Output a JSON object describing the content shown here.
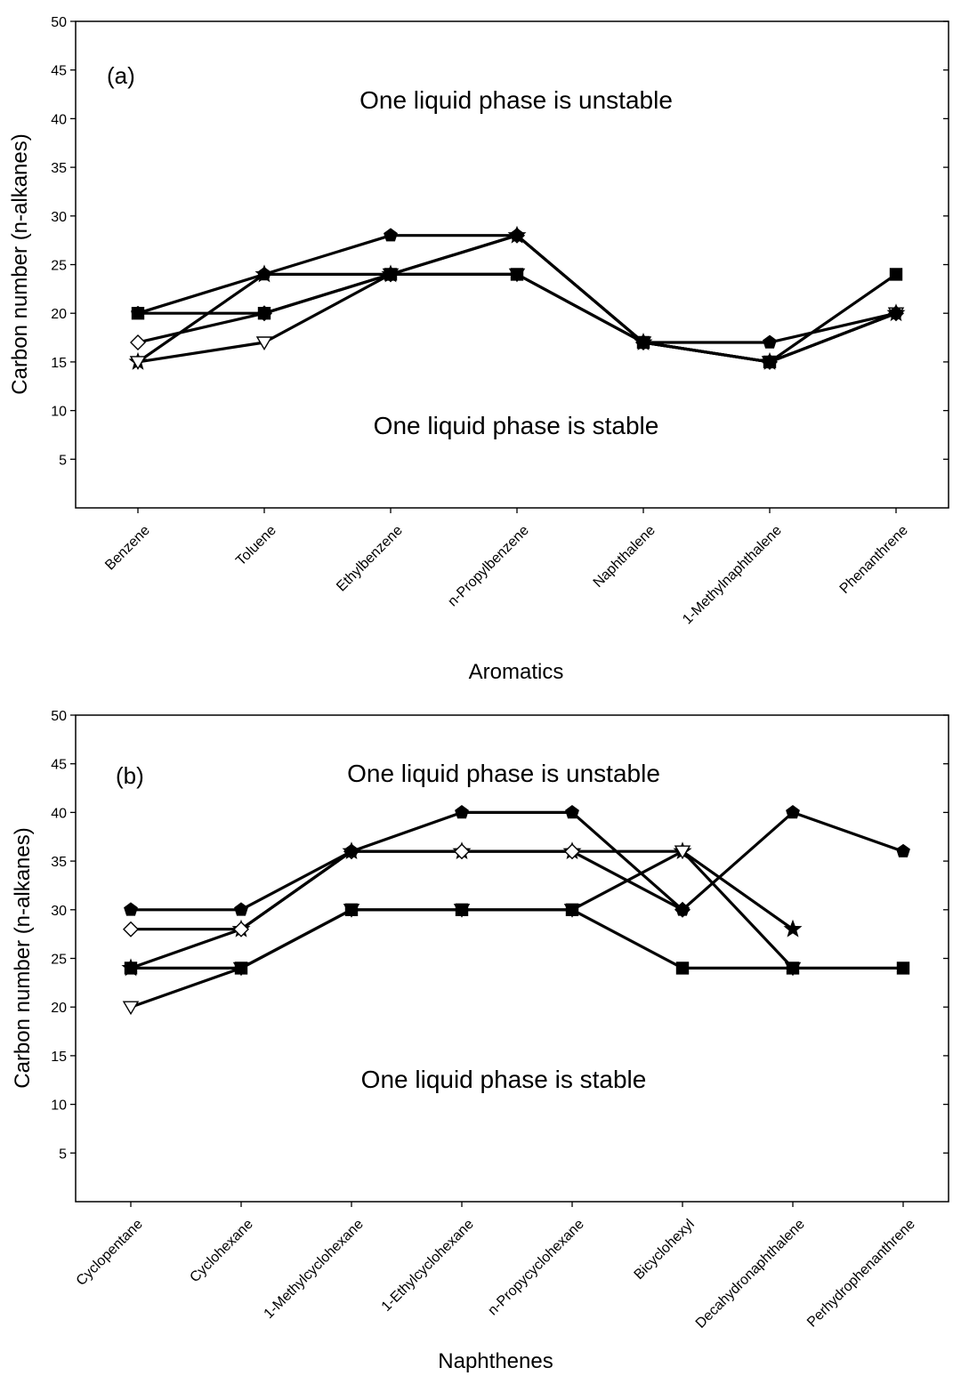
{
  "chart_data": [
    {
      "type": "line",
      "panel_label": "(a)",
      "xlabel": "Aromatics",
      "ylabel": "Carbon number (n-alkanes)",
      "ylim": [
        0,
        50
      ],
      "yticks": [
        5,
        10,
        15,
        20,
        25,
        30,
        35,
        40,
        45,
        50
      ],
      "categories": [
        "Benzene",
        "Toluene",
        "Ethylbenzene",
        "n-Propylbenzene",
        "Naphthalene",
        "1-Methylnaphthalene",
        "Phenanthrene"
      ],
      "annotations": [
        "One liquid phase is unstable",
        "One liquid phase is stable"
      ],
      "grid": false,
      "series": [
        {
          "marker": "pentagon-filled",
          "values": [
            20,
            24,
            28,
            28,
            17,
            17,
            20
          ]
        },
        {
          "marker": "square-filled",
          "values": [
            20,
            20,
            24,
            24,
            17,
            15,
            24
          ]
        },
        {
          "marker": "diamond-open",
          "values": [
            17,
            20,
            24,
            28,
            17,
            15,
            20
          ]
        },
        {
          "marker": "triangle-down-open",
          "values": [
            15,
            17,
            24,
            24,
            17,
            15,
            20
          ]
        },
        {
          "marker": "star-filled",
          "values": [
            15,
            24,
            24,
            28,
            17,
            15,
            20
          ]
        }
      ]
    },
    {
      "type": "line",
      "panel_label": "(b)",
      "xlabel": "Naphthenes",
      "ylabel": "Carbon number (n-alkanes)",
      "ylim": [
        0,
        50
      ],
      "yticks": [
        5,
        10,
        15,
        20,
        25,
        30,
        35,
        40,
        45,
        50
      ],
      "categories": [
        "Cyclopentane",
        "Cyclohexane",
        "1-Methylcyclohexane",
        "1-Ethylcyclohexane",
        "n-Propycyclohexane",
        "Bicyclohexyl",
        "Decahydronaphthalene",
        "Perhydrophenanthrene"
      ],
      "annotations": [
        "One liquid phase is unstable",
        "One liquid phase is stable"
      ],
      "grid": false,
      "series": [
        {
          "marker": "pentagon-filled",
          "values": [
            30,
            30,
            36,
            40,
            40,
            30,
            40,
            36
          ]
        },
        {
          "marker": "square-filled",
          "values": [
            24,
            24,
            30,
            30,
            30,
            24,
            24,
            24
          ]
        },
        {
          "marker": "diamond-open",
          "values": [
            28,
            28,
            36,
            36,
            36,
            30,
            null,
            null
          ]
        },
        {
          "marker": "triangle-down-open",
          "values": [
            20,
            24,
            30,
            30,
            30,
            36,
            24,
            null
          ]
        },
        {
          "marker": "star-filled",
          "values": [
            24,
            28,
            36,
            36,
            36,
            36,
            28,
            null
          ]
        }
      ]
    }
  ]
}
